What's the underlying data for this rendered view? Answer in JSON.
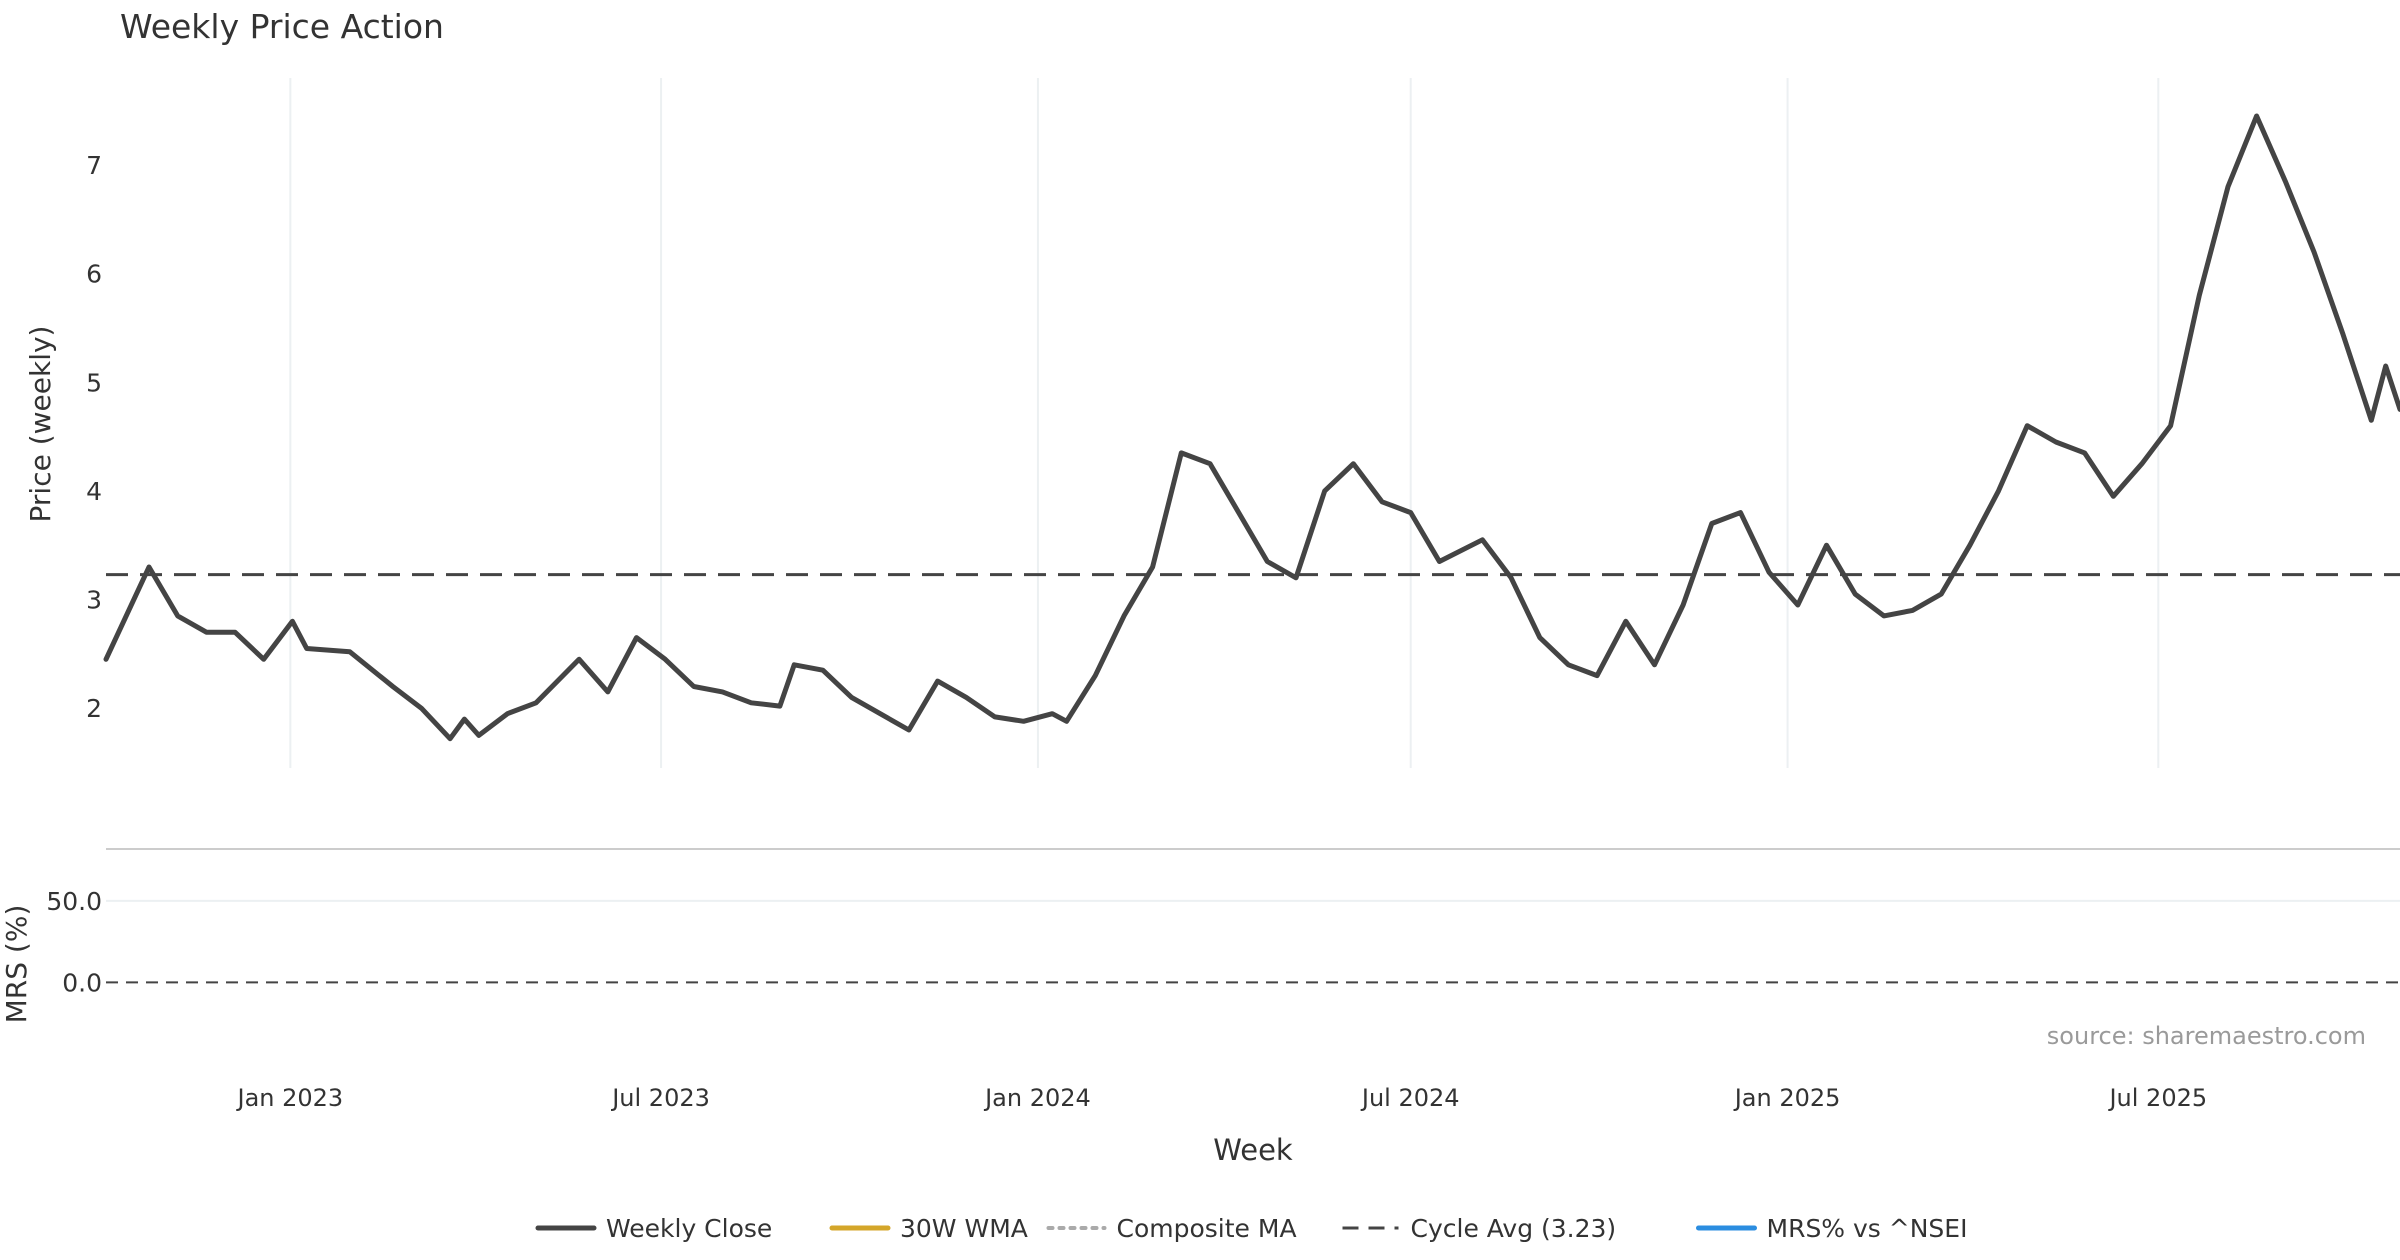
{
  "chart_data": {
    "type": "line",
    "title": "Weekly Price Action",
    "xlabel": "Week",
    "x_ticks": [
      "Jan 2023",
      "Jul 2023",
      "Jan 2024",
      "Jul 2024",
      "Jan 2025",
      "Jul 2025"
    ],
    "x_range": [
      "2022-10-03",
      "2025-10-27"
    ],
    "panels": [
      {
        "name": "price",
        "ylabel": "Price (weekly)",
        "y_ticks": [
          "2",
          "3",
          "4",
          "5",
          "6",
          "7"
        ],
        "ylim": [
          1.45,
          7.8
        ],
        "grid": "vertical"
      },
      {
        "name": "mrs",
        "ylabel": "MRS (%)",
        "y_ticks": [
          "50.0",
          "0.0"
        ],
        "ylim": [
          -55,
          80
        ],
        "grid": "horizontal"
      }
    ],
    "series": [
      {
        "name": "Weekly Close",
        "panel": "price",
        "color": "#444444",
        "style": "solid",
        "points": [
          [
            "2022-10-03",
            2.45
          ],
          [
            "2022-10-24",
            3.3
          ],
          [
            "2022-11-07",
            2.85
          ],
          [
            "2022-11-21",
            2.7
          ],
          [
            "2022-12-05",
            2.7
          ],
          [
            "2022-12-19",
            2.45
          ],
          [
            "2023-01-02",
            2.8
          ],
          [
            "2023-01-09",
            2.55
          ],
          [
            "2023-01-30",
            2.52
          ],
          [
            "2023-02-20",
            2.2
          ],
          [
            "2023-03-06",
            2.0
          ],
          [
            "2023-03-20",
            1.72
          ],
          [
            "2023-03-27",
            1.9
          ],
          [
            "2023-04-03",
            1.75
          ],
          [
            "2023-04-17",
            1.95
          ],
          [
            "2023-05-01",
            2.05
          ],
          [
            "2023-05-22",
            2.45
          ],
          [
            "2023-06-05",
            2.15
          ],
          [
            "2023-06-19",
            2.65
          ],
          [
            "2023-07-03",
            2.45
          ],
          [
            "2023-07-17",
            2.2
          ],
          [
            "2023-07-31",
            2.15
          ],
          [
            "2023-08-14",
            2.05
          ],
          [
            "2023-08-28",
            2.02
          ],
          [
            "2023-09-04",
            2.4
          ],
          [
            "2023-09-18",
            2.35
          ],
          [
            "2023-10-02",
            2.1
          ],
          [
            "2023-10-16",
            1.95
          ],
          [
            "2023-10-30",
            1.8
          ],
          [
            "2023-11-13",
            2.25
          ],
          [
            "2023-11-27",
            2.1
          ],
          [
            "2023-12-11",
            1.92
          ],
          [
            "2023-12-25",
            1.88
          ],
          [
            "2024-01-08",
            1.95
          ],
          [
            "2024-01-15",
            1.88
          ],
          [
            "2024-01-29",
            2.3
          ],
          [
            "2024-02-12",
            2.85
          ],
          [
            "2024-02-26",
            3.3
          ],
          [
            "2024-03-11",
            4.35
          ],
          [
            "2024-03-25",
            4.25
          ],
          [
            "2024-04-08",
            3.8
          ],
          [
            "2024-04-22",
            3.35
          ],
          [
            "2024-05-06",
            3.2
          ],
          [
            "2024-05-20",
            4.0
          ],
          [
            "2024-06-03",
            4.25
          ],
          [
            "2024-06-17",
            3.9
          ],
          [
            "2024-07-01",
            3.8
          ],
          [
            "2024-07-15",
            3.35
          ],
          [
            "2024-08-05",
            3.55
          ],
          [
            "2024-08-19",
            3.2
          ],
          [
            "2024-09-02",
            2.65
          ],
          [
            "2024-09-16",
            2.4
          ],
          [
            "2024-09-30",
            2.3
          ],
          [
            "2024-10-14",
            2.8
          ],
          [
            "2024-10-28",
            2.4
          ],
          [
            "2024-11-11",
            2.95
          ],
          [
            "2024-11-25",
            3.7
          ],
          [
            "2024-12-09",
            3.8
          ],
          [
            "2024-12-23",
            3.25
          ],
          [
            "2025-01-06",
            2.95
          ],
          [
            "2025-01-20",
            3.5
          ],
          [
            "2025-02-03",
            3.05
          ],
          [
            "2025-02-17",
            2.85
          ],
          [
            "2025-03-03",
            2.9
          ],
          [
            "2025-03-17",
            3.05
          ],
          [
            "2025-03-31",
            3.5
          ],
          [
            "2025-04-14",
            4.0
          ],
          [
            "2025-04-28",
            4.6
          ],
          [
            "2025-05-12",
            4.45
          ],
          [
            "2025-05-26",
            4.35
          ],
          [
            "2025-06-09",
            3.95
          ],
          [
            "2025-06-23",
            4.25
          ],
          [
            "2025-07-07",
            4.6
          ],
          [
            "2025-07-21",
            5.8
          ],
          [
            "2025-08-04",
            6.8
          ],
          [
            "2025-08-18",
            7.45
          ],
          [
            "2025-09-01",
            6.85
          ],
          [
            "2025-09-15",
            6.2
          ],
          [
            "2025-09-29",
            5.45
          ],
          [
            "2025-10-13",
            4.65
          ],
          [
            "2025-10-20",
            5.15
          ],
          [
            "2025-10-27",
            4.75
          ]
        ]
      }
    ],
    "series_note": "Series points are (week, value) pairs read off the chart.",
    "series_more": [
      {
        "name": "Weekly Close (cont.)",
        "panel": "price",
        "color": "#444444",
        "style": "solid",
        "points": [
          [
            "2025-10-27",
            4.75
          ]
        ]
      }
    ],
    "reference_lines": [
      {
        "name": "Cycle Avg (3.23)",
        "panel": "price",
        "value": 3.23,
        "color": "#444444",
        "style": "dashed"
      },
      {
        "name": "MRS zero",
        "panel": "mrs",
        "value": 0,
        "color": "#444444",
        "style": "dashed"
      }
    ],
    "signals": [],
    "legend": {
      "position": "bottom-center",
      "entries": [
        {
          "label": "Weekly Close",
          "color": "#444444",
          "style": "solid"
        },
        {
          "label": "30W WMA",
          "color": "#d4a62a",
          "style": "solid"
        },
        {
          "label": "Composite MA",
          "color": "#aaaaaa",
          "style": "dotted"
        },
        {
          "label": "Cycle Avg (3.23)",
          "color": "#444444",
          "style": "dashed"
        },
        {
          "label": "MRS% vs ^NSEI",
          "color": "#2b8de0",
          "style": "solid"
        }
      ]
    },
    "annotation": "source: sharemaestro.com"
  }
}
